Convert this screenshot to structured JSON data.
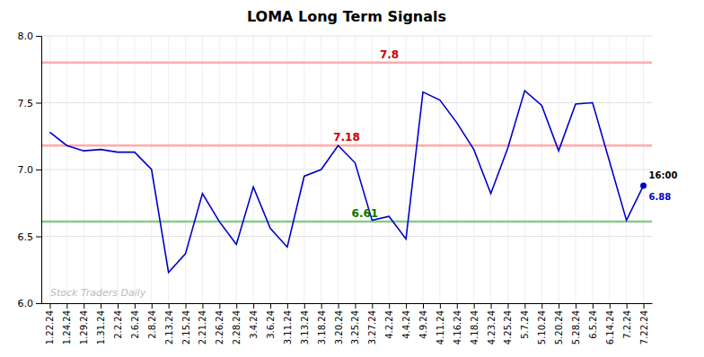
{
  "chart_data": {
    "type": "line",
    "title": "LOMA Long Term Signals",
    "categories": [
      "1.22.24",
      "1.24.24",
      "1.29.24",
      "1.31.24",
      "2.2.24",
      "2.6.24",
      "2.8.24",
      "2.13.24",
      "2.15.24",
      "2.21.24",
      "2.26.24",
      "2.28.24",
      "3.4.24",
      "3.6.24",
      "3.11.24",
      "3.13.24",
      "3.18.24",
      "3.20.24",
      "3.25.24",
      "3.27.24",
      "4.2.24",
      "4.4.24",
      "4.9.24",
      "4.11.24",
      "4.16.24",
      "4.18.24",
      "4.23.24",
      "4.25.24",
      "5.7.24",
      "5.10.24",
      "5.20.24",
      "5.28.24",
      "6.5.24",
      "6.14.24",
      "7.2.24",
      "7.22.24"
    ],
    "values": [
      7.28,
      7.18,
      7.14,
      7.15,
      7.13,
      7.13,
      7.0,
      6.23,
      6.37,
      6.82,
      6.61,
      6.44,
      6.87,
      6.56,
      6.42,
      6.95,
      7.0,
      7.18,
      7.05,
      6.62,
      6.65,
      6.48,
      7.58,
      7.52,
      7.35,
      7.15,
      6.82,
      7.16,
      7.59,
      7.48,
      7.14,
      7.49,
      7.5,
      7.06,
      6.62,
      6.88
    ],
    "color": "#0000cc",
    "reference_lines": [
      {
        "value": 7.8,
        "label": "7.8",
        "color": "#ffaaaa",
        "label_color": "#cc0000"
      },
      {
        "value": 7.18,
        "label": "7.18",
        "color": "#ffaaaa",
        "label_color": "#cc0000"
      },
      {
        "value": 6.61,
        "label": "6.61",
        "color": "#88cc88",
        "label_color": "#007700"
      }
    ],
    "annotations": [
      "16:00"
    ],
    "watermark": "Stock Traders Daily",
    "ylim": [
      6.0,
      8.0
    ],
    "yticks": [
      {
        "value": 6.0,
        "label": "6.0"
      },
      6.5,
      {
        "value": 7.0,
        "label": "7.0"
      },
      7.5,
      {
        "value": 8.0,
        "label": "8.0"
      }
    ],
    "grid": true
  }
}
